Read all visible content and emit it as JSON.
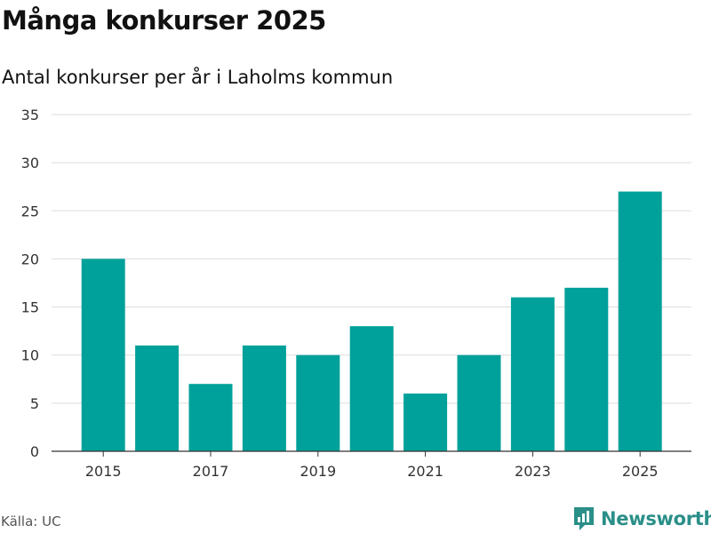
{
  "header": {
    "title": "Många konkurser 2025",
    "subtitle": "Antal konkurser per år i Laholms kommun"
  },
  "footer": {
    "source": "Källa: UC",
    "brand": "Newsworthy"
  },
  "colors": {
    "bar": "#00a19a",
    "grid": "#dddddd",
    "axis": "#333333",
    "brand": "#2a8f88"
  },
  "chart_data": {
    "type": "bar",
    "categories": [
      "2015",
      "2016",
      "2017",
      "2018",
      "2019",
      "2020",
      "2021",
      "2022",
      "2023",
      "2024",
      "2025"
    ],
    "values": [
      20,
      11,
      7,
      11,
      10,
      13,
      6,
      10,
      16,
      17,
      27
    ],
    "x_tick_labels": [
      "2015",
      "2017",
      "2019",
      "2021",
      "2023",
      "2025"
    ],
    "y_ticks": [
      0,
      5,
      10,
      15,
      20,
      25,
      30,
      35
    ],
    "ylim": [
      0,
      35
    ],
    "title": "Många konkurser 2025",
    "subtitle": "Antal konkurser per år i Laholms kommun",
    "xlabel": "",
    "ylabel": "",
    "grid": true,
    "legend": "none"
  }
}
